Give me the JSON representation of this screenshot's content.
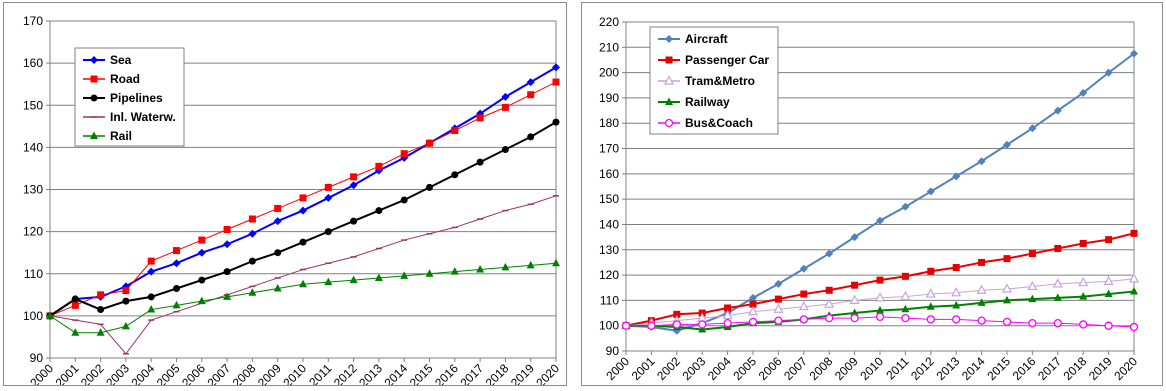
{
  "chart_data": [
    {
      "type": "line",
      "title": "",
      "xlabel": "",
      "ylabel": "",
      "x": [
        "2000",
        "2001",
        "2002",
        "2003",
        "2004",
        "2005",
        "2006",
        "2007",
        "2008",
        "2009",
        "2010",
        "2011",
        "2012",
        "2013",
        "2014",
        "2015",
        "2016",
        "2017",
        "2018",
        "2019",
        "2020"
      ],
      "ylim": [
        90,
        170
      ],
      "yticks": [
        90,
        100,
        110,
        120,
        130,
        140,
        150,
        160,
        170
      ],
      "grid": true,
      "legend_position": "top-left",
      "series": [
        {
          "name": "Sea",
          "color": "#0000ff",
          "marker": "diamond",
          "width": 2,
          "values": [
            100,
            104,
            104.5,
            107,
            110.5,
            112.5,
            115,
            117,
            119.5,
            122.5,
            125,
            128,
            131,
            134.5,
            137.5,
            141,
            144.5,
            148,
            152,
            155.5,
            159
          ]
        },
        {
          "name": "Road",
          "color": "#ff0000",
          "marker": "square",
          "width": 1,
          "values": [
            100,
            102.5,
            105,
            106,
            113,
            115.5,
            118,
            120.5,
            123,
            125.5,
            128,
            130.5,
            133,
            135.5,
            138.5,
            141,
            144,
            147,
            149.5,
            152.5,
            155.5
          ]
        },
        {
          "name": "Pipelines",
          "color": "#000000",
          "marker": "circle",
          "width": 2,
          "values": [
            100,
            104,
            101.5,
            103.5,
            104.5,
            106.5,
            108.5,
            110.5,
            113,
            115,
            117.5,
            120,
            122.5,
            125,
            127.5,
            130.5,
            133.5,
            136.5,
            139.5,
            142.5,
            146
          ]
        },
        {
          "name": "Inl. Waterw.",
          "color": "#993366",
          "marker": "dash",
          "width": 1,
          "values": [
            100,
            99,
            98,
            91,
            99,
            101,
            103,
            105,
            107,
            109,
            111,
            112.5,
            114,
            116,
            118,
            119.5,
            121,
            123,
            125,
            126.5,
            128.5
          ]
        },
        {
          "name": "Rail",
          "color": "#008000",
          "marker": "triangle",
          "width": 1,
          "values": [
            100,
            96,
            96,
            97.5,
            101.5,
            102.5,
            103.5,
            104.5,
            105.5,
            106.5,
            107.5,
            108,
            108.5,
            109,
            109.5,
            110,
            110.5,
            111,
            111.5,
            112,
            112.5
          ]
        }
      ]
    },
    {
      "type": "line",
      "title": "",
      "xlabel": "",
      "ylabel": "",
      "x": [
        "2000",
        "2001",
        "2002",
        "2003",
        "2004",
        "2005",
        "2006",
        "2007",
        "2008",
        "2009",
        "2010",
        "2011",
        "2012",
        "2013",
        "2014",
        "2015",
        "2016",
        "2017",
        "2018",
        "2019",
        "2020"
      ],
      "ylim": [
        90,
        220
      ],
      "yticks": [
        90,
        100,
        110,
        120,
        130,
        140,
        150,
        160,
        170,
        180,
        190,
        200,
        210,
        220
      ],
      "grid": true,
      "legend_position": "top-left",
      "series": [
        {
          "name": "Aircraft",
          "color": "#4f81bd",
          "marker": "diamond",
          "width": 2,
          "values": [
            100,
            99.5,
            98,
            101,
            105,
            111,
            116.5,
            122.5,
            128.5,
            135,
            141.5,
            147,
            153,
            159,
            165,
            171.5,
            178,
            185,
            192,
            200,
            207.5
          ]
        },
        {
          "name": "Passenger Car",
          "color": "#e60000",
          "marker": "square",
          "width": 2,
          "values": [
            100,
            102,
            104.5,
            105,
            107,
            108.5,
            110.5,
            112.5,
            114,
            116,
            118,
            119.5,
            121.5,
            123,
            125,
            126.5,
            128.5,
            130.5,
            132.5,
            134,
            136.5
          ]
        },
        {
          "name": "Tram&Metro",
          "color": "#c8a2dc",
          "marker": "open-triangle",
          "width": 1,
          "values": [
            100,
            101,
            102,
            103,
            104,
            105.5,
            106.5,
            107.5,
            108.5,
            110,
            111,
            111.5,
            112.5,
            113,
            114,
            114.5,
            115.5,
            116.5,
            117,
            117.5,
            118.5
          ]
        },
        {
          "name": "Railway",
          "color": "#008000",
          "marker": "triangle",
          "width": 2,
          "values": [
            100,
            100,
            99.5,
            98.5,
            99.5,
            101,
            101.5,
            102.5,
            104,
            105,
            106,
            106.5,
            107.5,
            108,
            109,
            110,
            110.5,
            111,
            111.5,
            112.5,
            113.5
          ]
        },
        {
          "name": "Bus&Coach",
          "color": "#ff00ff",
          "marker": "open-circle",
          "width": 1,
          "values": [
            100,
            100,
            100.5,
            100.5,
            101,
            101.5,
            102,
            102.5,
            103,
            103,
            103.5,
            103,
            102.5,
            102.5,
            102,
            101.5,
            101,
            101,
            100.5,
            100,
            99.5
          ]
        }
      ]
    }
  ]
}
